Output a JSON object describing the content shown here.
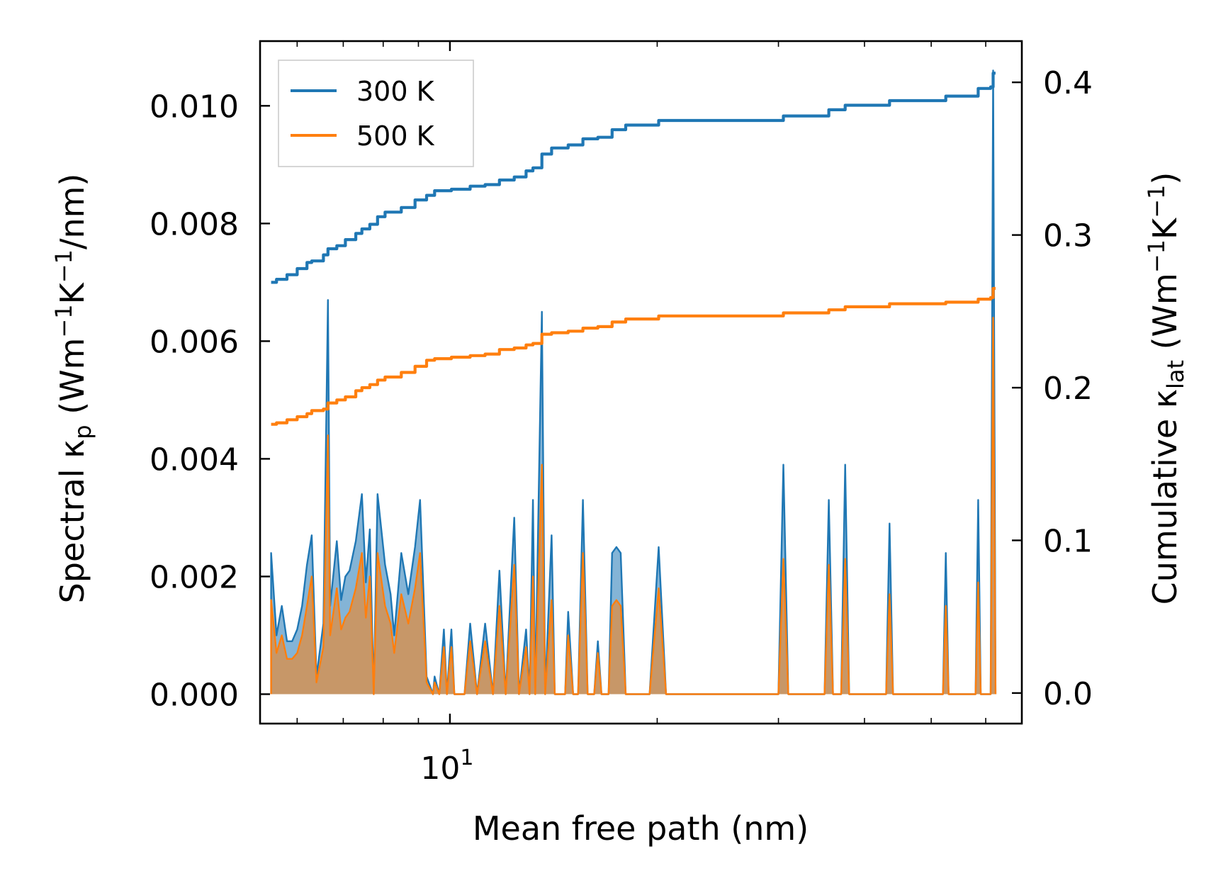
{
  "chart_data": {
    "type": "line",
    "xscale": "log",
    "xlabel": "Mean free path (nm)",
    "xlim": [
      5.3,
      67.7
    ],
    "x_tick_labels": [
      {
        "value": 10,
        "base": "10",
        "exponent": "1"
      }
    ],
    "x_minor_ticks": [
      6,
      7,
      8,
      9,
      20,
      30,
      40,
      50,
      60
    ],
    "left_axis": {
      "label_parts": [
        "Spectral κ",
        "p",
        " (Wm",
        "−1",
        "K",
        "−1",
        "/nm)"
      ],
      "ylim": [
        -0.0005,
        0.0111
      ],
      "ticks": [
        0.0,
        0.002,
        0.004,
        0.006,
        0.008,
        0.01
      ],
      "tick_labels": [
        "0.000",
        "0.002",
        "0.004",
        "0.006",
        "0.008",
        "0.010"
      ]
    },
    "right_axis": {
      "label_parts": [
        "Cumulative κ",
        "lat",
        " (Wm",
        "−1",
        "K",
        "−1",
        ")"
      ],
      "ylim": [
        -0.02,
        0.427
      ],
      "ticks": [
        0.0,
        0.1,
        0.2,
        0.3,
        0.4
      ],
      "tick_labels": [
        "0.0",
        "0.1",
        "0.2",
        "0.3",
        "0.4"
      ]
    },
    "legend": {
      "placement": "upper-left",
      "entries": [
        {
          "label": "300 K",
          "color": "#1f77b4"
        },
        {
          "label": "500 K",
          "color": "#ff7f0e"
        }
      ]
    },
    "series": [
      {
        "name": "300 K",
        "color": "#1f77b4",
        "spectral": [
          [
            5.5,
            0.0
          ],
          [
            5.5,
            0.0024
          ],
          [
            5.6,
            0.001
          ],
          [
            5.7,
            0.0015
          ],
          [
            5.8,
            0.0009
          ],
          [
            5.9,
            0.0009
          ],
          [
            6.0,
            0.0011
          ],
          [
            6.1,
            0.0015
          ],
          [
            6.2,
            0.0022
          ],
          [
            6.3,
            0.0027
          ],
          [
            6.4,
            0.0003
          ],
          [
            6.55,
            0.0012
          ],
          [
            6.65,
            0.0067
          ],
          [
            6.7,
            0.0015
          ],
          [
            6.85,
            0.0026
          ],
          [
            6.95,
            0.0016
          ],
          [
            7.05,
            0.002
          ],
          [
            7.15,
            0.0021
          ],
          [
            7.3,
            0.0026
          ],
          [
            7.45,
            0.0034
          ],
          [
            7.55,
            0.0019
          ],
          [
            7.65,
            0.0028
          ],
          [
            7.75,
            0.0
          ],
          [
            7.85,
            0.0034
          ],
          [
            8.05,
            0.0022
          ],
          [
            8.2,
            0.0017
          ],
          [
            8.3,
            0.001
          ],
          [
            8.5,
            0.0024
          ],
          [
            8.7,
            0.0017
          ],
          [
            8.9,
            0.0025
          ],
          [
            9.05,
            0.0033
          ],
          [
            9.25,
            0.0003
          ],
          [
            9.45,
            0.0
          ],
          [
            9.5,
            0.0003
          ],
          [
            9.65,
            0.0
          ],
          [
            9.8,
            0.0011
          ],
          [
            9.9,
            0.0
          ],
          [
            10.05,
            0.0011
          ],
          [
            10.15,
            0.0
          ],
          [
            10.5,
            0.0
          ],
          [
            10.7,
            0.0012
          ],
          [
            10.95,
            0.0
          ],
          [
            11.25,
            0.0012
          ],
          [
            11.55,
            0.0
          ],
          [
            11.8,
            0.0021
          ],
          [
            12.05,
            0.0
          ],
          [
            12.4,
            0.003
          ],
          [
            12.6,
            0.0
          ],
          [
            12.9,
            0.0011
          ],
          [
            13.05,
            0.0
          ],
          [
            13.2,
            0.0033
          ],
          [
            13.3,
            0.0
          ],
          [
            13.6,
            0.0065
          ],
          [
            13.75,
            0.0
          ],
          [
            14.05,
            0.0027
          ],
          [
            14.2,
            0.0
          ],
          [
            14.7,
            0.0
          ],
          [
            14.85,
            0.0014
          ],
          [
            15.1,
            0.0
          ],
          [
            15.35,
            0.0
          ],
          [
            15.6,
            0.0033
          ],
          [
            15.85,
            0.0
          ],
          [
            16.2,
            0.0
          ],
          [
            16.4,
            0.0009
          ],
          [
            16.6,
            0.0
          ],
          [
            17.0,
            0.0
          ],
          [
            17.2,
            0.0024
          ],
          [
            17.45,
            0.0025
          ],
          [
            17.7,
            0.0024
          ],
          [
            18.0,
            0.0
          ],
          [
            19.5,
            0.0
          ],
          [
            20.1,
            0.0025
          ],
          [
            20.6,
            0.0
          ],
          [
            30.0,
            0.0
          ],
          [
            30.5,
            0.0039
          ],
          [
            31.0,
            0.0
          ],
          [
            35.0,
            0.0
          ],
          [
            35.5,
            0.0033
          ],
          [
            36.0,
            0.0
          ],
          [
            37.0,
            0.0
          ],
          [
            37.5,
            0.0039
          ],
          [
            38.0,
            0.0
          ],
          [
            43.0,
            0.0
          ],
          [
            43.5,
            0.0029
          ],
          [
            44.0,
            0.0
          ],
          [
            52.0,
            0.0
          ],
          [
            52.5,
            0.0024
          ],
          [
            53.0,
            0.0
          ],
          [
            58.0,
            0.0
          ],
          [
            58.5,
            0.0033
          ],
          [
            59.0,
            0.0
          ],
          [
            61.0,
            0.0
          ],
          [
            61.5,
            0.0106
          ],
          [
            62.0,
            0.0
          ]
        ],
        "cumulative": [
          [
            5.5,
            0.269
          ],
          [
            5.6,
            0.271
          ],
          [
            5.8,
            0.274
          ],
          [
            6.0,
            0.278
          ],
          [
            6.2,
            0.282
          ],
          [
            6.3,
            0.283
          ],
          [
            6.55,
            0.287
          ],
          [
            6.65,
            0.291
          ],
          [
            6.85,
            0.293
          ],
          [
            7.05,
            0.297
          ],
          [
            7.3,
            0.301
          ],
          [
            7.45,
            0.304
          ],
          [
            7.65,
            0.307
          ],
          [
            7.85,
            0.312
          ],
          [
            8.05,
            0.315
          ],
          [
            8.5,
            0.318
          ],
          [
            8.9,
            0.323
          ],
          [
            9.25,
            0.326
          ],
          [
            9.5,
            0.329
          ],
          [
            10.05,
            0.33
          ],
          [
            10.7,
            0.332
          ],
          [
            11.25,
            0.333
          ],
          [
            11.8,
            0.336
          ],
          [
            12.4,
            0.338
          ],
          [
            12.9,
            0.342
          ],
          [
            13.2,
            0.344
          ],
          [
            13.6,
            0.353
          ],
          [
            14.05,
            0.357
          ],
          [
            14.85,
            0.359
          ],
          [
            15.6,
            0.363
          ],
          [
            16.4,
            0.364
          ],
          [
            17.2,
            0.369
          ],
          [
            18.0,
            0.372
          ],
          [
            20.1,
            0.375
          ],
          [
            30.0,
            0.375
          ],
          [
            30.5,
            0.378
          ],
          [
            35.5,
            0.382
          ],
          [
            37.5,
            0.385
          ],
          [
            43.5,
            0.388
          ],
          [
            52.5,
            0.391
          ],
          [
            58.5,
            0.396
          ],
          [
            61.0,
            0.397
          ],
          [
            61.5,
            0.406
          ],
          [
            62.0,
            0.406
          ]
        ]
      },
      {
        "name": "500 K",
        "color": "#ff7f0e",
        "spectral": [
          [
            5.5,
            0.0
          ],
          [
            5.5,
            0.0016
          ],
          [
            5.6,
            0.0007
          ],
          [
            5.7,
            0.001
          ],
          [
            5.8,
            0.0006
          ],
          [
            5.9,
            0.0006
          ],
          [
            6.0,
            0.0007
          ],
          [
            6.1,
            0.001
          ],
          [
            6.2,
            0.0015
          ],
          [
            6.3,
            0.002
          ],
          [
            6.4,
            0.0002
          ],
          [
            6.55,
            0.0008
          ],
          [
            6.65,
            0.0044
          ],
          [
            6.7,
            0.001
          ],
          [
            6.85,
            0.0018
          ],
          [
            6.95,
            0.0011
          ],
          [
            7.05,
            0.0013
          ],
          [
            7.15,
            0.0014
          ],
          [
            7.3,
            0.0018
          ],
          [
            7.45,
            0.0024
          ],
          [
            7.55,
            0.0013
          ],
          [
            7.65,
            0.002
          ],
          [
            7.75,
            0.0
          ],
          [
            7.85,
            0.0024
          ],
          [
            8.05,
            0.0015
          ],
          [
            8.2,
            0.0012
          ],
          [
            8.3,
            0.0007
          ],
          [
            8.5,
            0.0017
          ],
          [
            8.7,
            0.0012
          ],
          [
            8.9,
            0.0018
          ],
          [
            9.05,
            0.0024
          ],
          [
            9.25,
            0.0002
          ],
          [
            9.45,
            0.0
          ],
          [
            9.5,
            0.0002
          ],
          [
            9.65,
            0.0
          ],
          [
            9.8,
            0.0008
          ],
          [
            9.9,
            0.0
          ],
          [
            10.05,
            0.0008
          ],
          [
            10.15,
            0.0
          ],
          [
            10.5,
            0.0
          ],
          [
            10.7,
            0.0009
          ],
          [
            10.95,
            0.0
          ],
          [
            11.25,
            0.0009
          ],
          [
            11.55,
            0.0
          ],
          [
            11.8,
            0.0015
          ],
          [
            12.05,
            0.0
          ],
          [
            12.4,
            0.0022
          ],
          [
            12.6,
            0.0
          ],
          [
            12.9,
            0.0008
          ],
          [
            13.05,
            0.0
          ],
          [
            13.2,
            0.002
          ],
          [
            13.3,
            0.0
          ],
          [
            13.6,
            0.0039
          ],
          [
            13.75,
            0.0
          ],
          [
            14.05,
            0.0016
          ],
          [
            14.2,
            0.0
          ],
          [
            14.7,
            0.0
          ],
          [
            14.85,
            0.001
          ],
          [
            15.1,
            0.0
          ],
          [
            15.35,
            0.0
          ],
          [
            15.6,
            0.0024
          ],
          [
            15.85,
            0.0
          ],
          [
            16.2,
            0.0
          ],
          [
            16.4,
            0.0007
          ],
          [
            16.6,
            0.0
          ],
          [
            17.0,
            0.0
          ],
          [
            17.2,
            0.0015
          ],
          [
            17.45,
            0.0016
          ],
          [
            17.7,
            0.0015
          ],
          [
            18.0,
            0.0
          ],
          [
            19.5,
            0.0
          ],
          [
            20.1,
            0.0018
          ],
          [
            20.6,
            0.0
          ],
          [
            30.0,
            0.0
          ],
          [
            30.5,
            0.0023
          ],
          [
            31.0,
            0.0
          ],
          [
            35.0,
            0.0
          ],
          [
            35.5,
            0.0022
          ],
          [
            36.0,
            0.0
          ],
          [
            37.0,
            0.0
          ],
          [
            37.5,
            0.0023
          ],
          [
            38.0,
            0.0
          ],
          [
            43.0,
            0.0
          ],
          [
            43.5,
            0.0017
          ],
          [
            44.0,
            0.0
          ],
          [
            52.0,
            0.0
          ],
          [
            52.5,
            0.0015
          ],
          [
            53.0,
            0.0
          ],
          [
            58.0,
            0.0
          ],
          [
            58.5,
            0.0019
          ],
          [
            59.0,
            0.0
          ],
          [
            61.0,
            0.0
          ],
          [
            61.5,
            0.0064
          ],
          [
            62.0,
            0.0
          ]
        ],
        "cumulative": [
          [
            5.5,
            0.176
          ],
          [
            5.6,
            0.177
          ],
          [
            5.8,
            0.179
          ],
          [
            6.0,
            0.181
          ],
          [
            6.2,
            0.183
          ],
          [
            6.3,
            0.185
          ],
          [
            6.55,
            0.186
          ],
          [
            6.65,
            0.19
          ],
          [
            6.85,
            0.192
          ],
          [
            7.05,
            0.194
          ],
          [
            7.3,
            0.198
          ],
          [
            7.45,
            0.2
          ],
          [
            7.65,
            0.202
          ],
          [
            7.85,
            0.205
          ],
          [
            8.05,
            0.207
          ],
          [
            8.5,
            0.21
          ],
          [
            8.9,
            0.214
          ],
          [
            9.25,
            0.218
          ],
          [
            9.5,
            0.219
          ],
          [
            10.05,
            0.22
          ],
          [
            10.7,
            0.221
          ],
          [
            11.25,
            0.222
          ],
          [
            11.8,
            0.225
          ],
          [
            12.4,
            0.226
          ],
          [
            12.9,
            0.228
          ],
          [
            13.2,
            0.229
          ],
          [
            13.6,
            0.235
          ],
          [
            14.05,
            0.236
          ],
          [
            14.85,
            0.237
          ],
          [
            15.6,
            0.239
          ],
          [
            16.4,
            0.24
          ],
          [
            17.2,
            0.243
          ],
          [
            18.0,
            0.245
          ],
          [
            20.1,
            0.247
          ],
          [
            30.0,
            0.247
          ],
          [
            30.5,
            0.249
          ],
          [
            35.5,
            0.251
          ],
          [
            37.5,
            0.253
          ],
          [
            43.5,
            0.255
          ],
          [
            52.5,
            0.256
          ],
          [
            58.5,
            0.258
          ],
          [
            61.0,
            0.259
          ],
          [
            61.5,
            0.265
          ],
          [
            62.0,
            0.265
          ]
        ]
      }
    ]
  }
}
